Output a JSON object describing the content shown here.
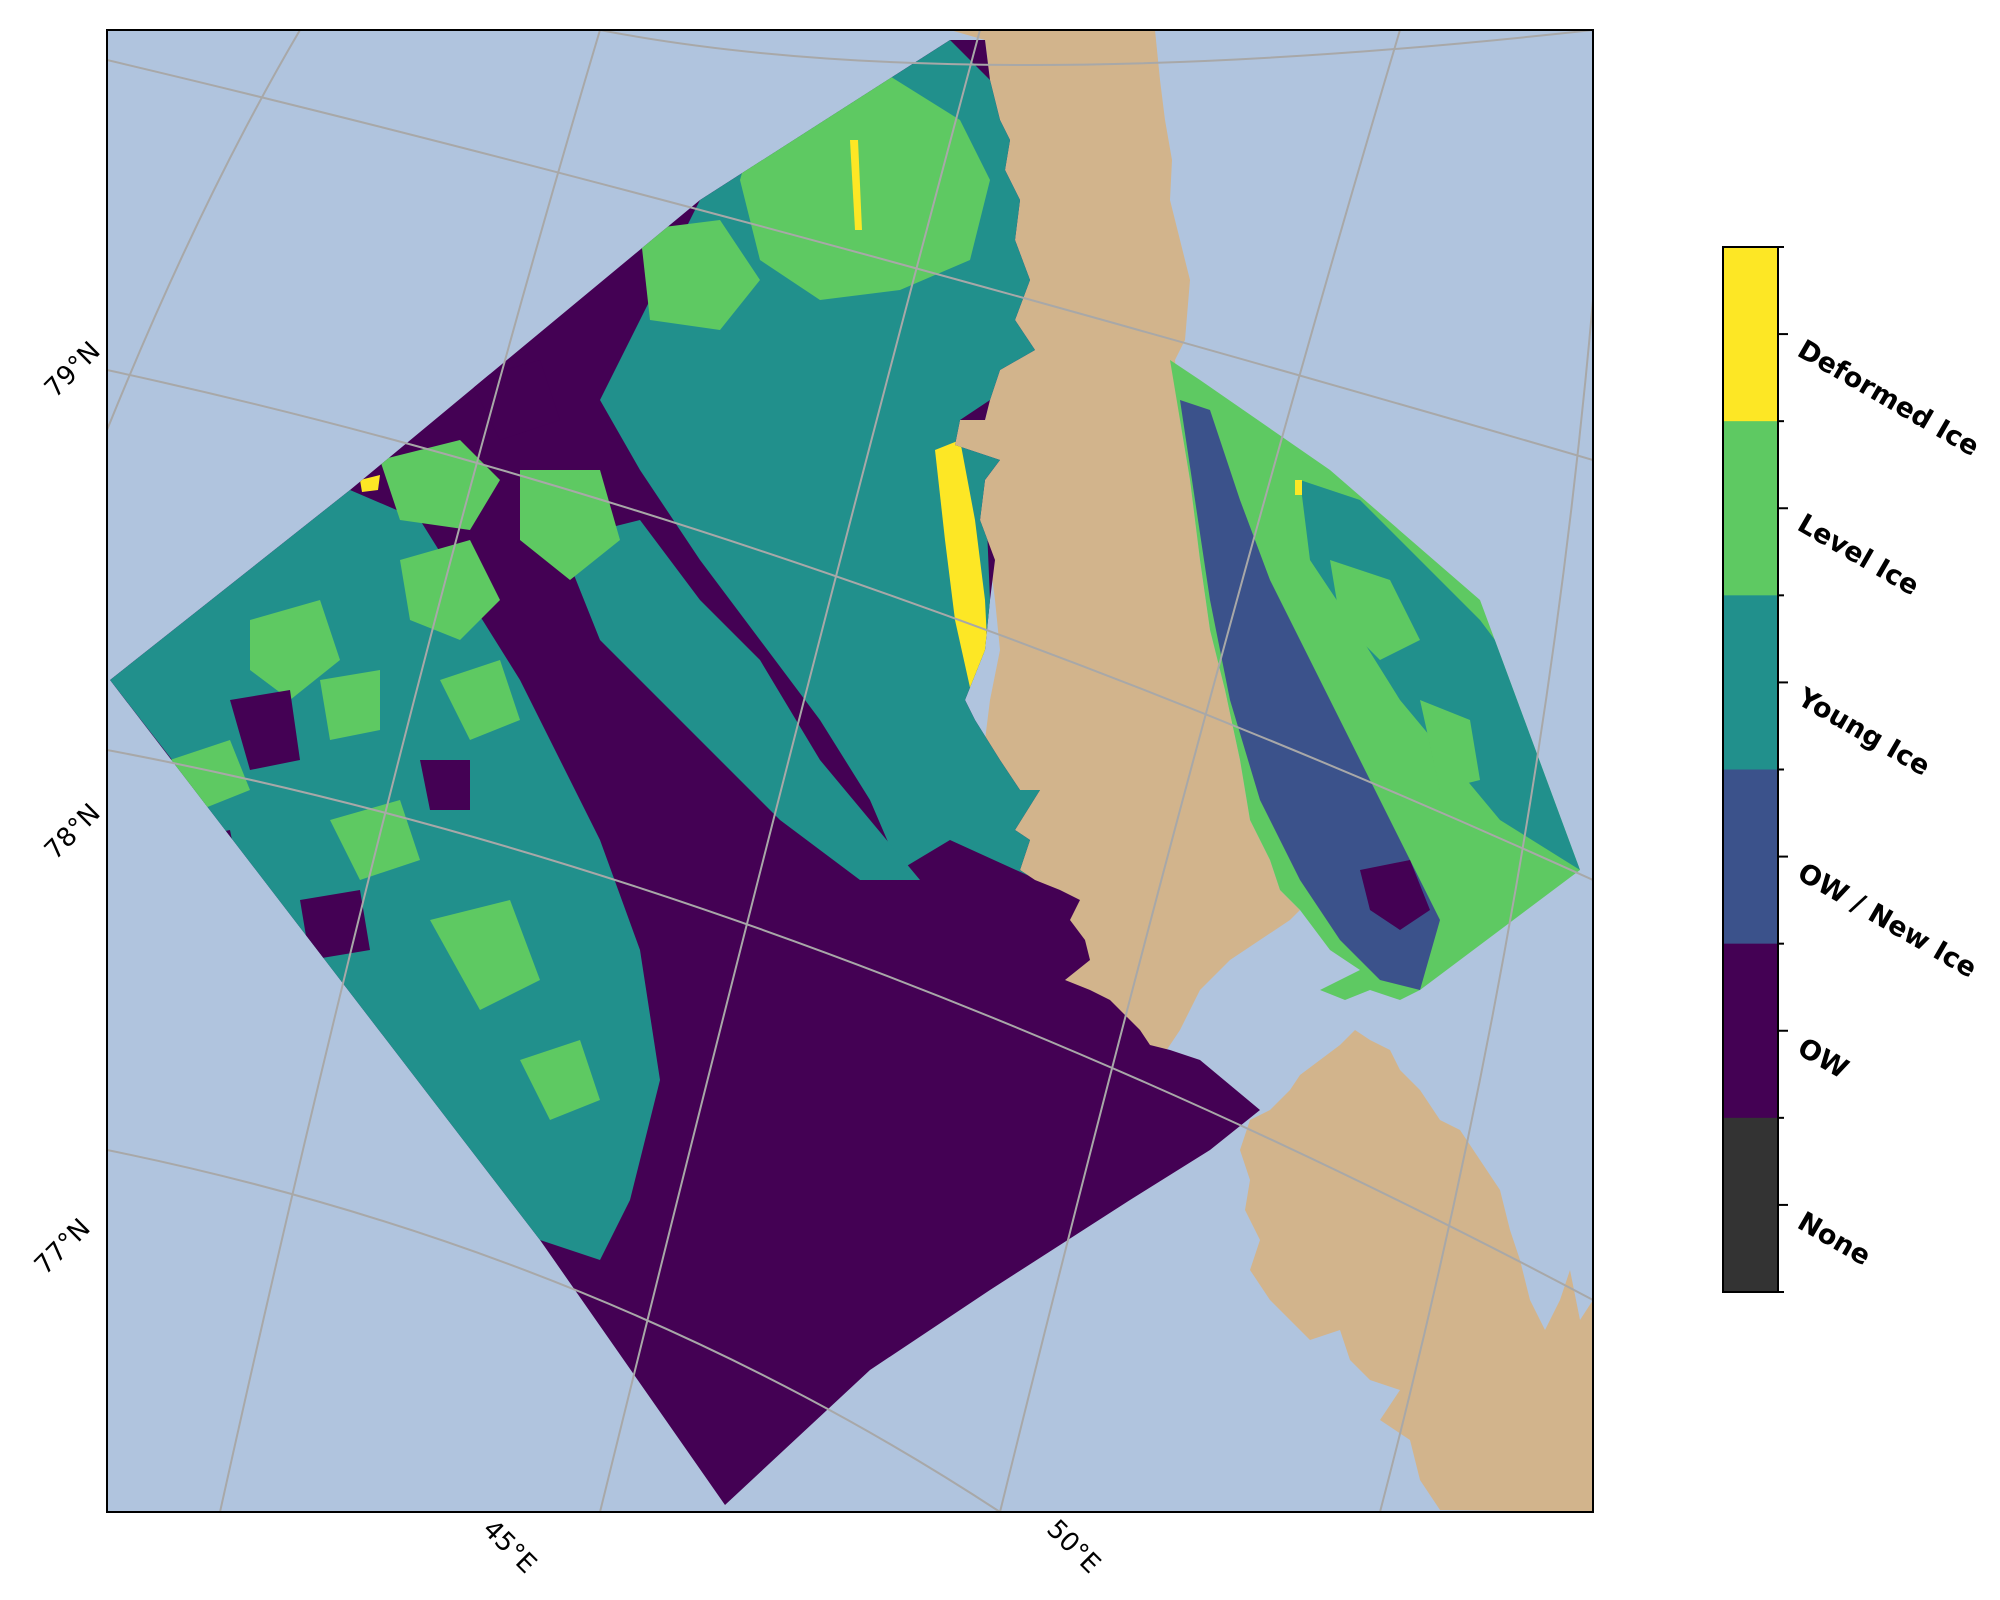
{
  "map": {
    "lat_labels": [
      "79°N",
      "78°N",
      "77°N"
    ],
    "lon_labels": [
      "45°E",
      "50°E"
    ],
    "colors": {
      "ocean": "#b0c4de",
      "land": "#d2b48c",
      "gridline": "#a8a8a8",
      "ow": "#440154",
      "ow_new_ice": "#3b528b",
      "young_ice": "#21908c",
      "level_ice": "#5ec962",
      "deformed_ice": "#fde725",
      "none": "#333333"
    }
  },
  "colorbar": {
    "classes": [
      {
        "label": "Deformed Ice",
        "color": "#fde725"
      },
      {
        "label": "Level Ice",
        "color": "#5ec962"
      },
      {
        "label": "Young Ice",
        "color": "#21908c"
      },
      {
        "label": "OW / New Ice",
        "color": "#3b528b"
      },
      {
        "label": "OW",
        "color": "#440154"
      },
      {
        "label": "None",
        "color": "#333333"
      }
    ]
  }
}
